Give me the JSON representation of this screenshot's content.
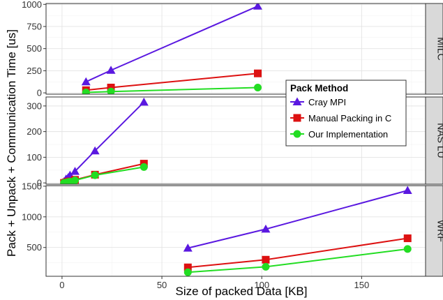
{
  "chart_data": {
    "type": "line",
    "xlabel": "Size of packed Data [KB]",
    "ylabel": "Pack + Unpack + Communication Time [us]",
    "xlim": [
      -8,
      182
    ],
    "x_ticks": [
      0,
      50,
      100,
      150
    ],
    "grid": true,
    "legend": {
      "title": "Pack Method",
      "placement": "top-right",
      "entries": [
        "Cray MPI",
        "Manual Packing in C",
        "Our Implementation"
      ]
    },
    "series_style": [
      {
        "name": "Cray MPI",
        "color": "#5a18e0",
        "marker": "triangle"
      },
      {
        "name": "Manual Packing in C",
        "color": "#dd1111",
        "marker": "square"
      },
      {
        "name": "Our Implementation",
        "color": "#22dd22",
        "marker": "circle"
      }
    ],
    "panels": [
      {
        "facet_label": "MILC",
        "ylim": [
          -15,
          1010
        ],
        "y_ticks": [
          0,
          250,
          500,
          750,
          1000
        ],
        "series": [
          {
            "name": "Cray MPI",
            "x": [
              12,
              24.5,
              98
            ],
            "y": [
              125,
              255,
              980
            ]
          },
          {
            "name": "Manual Packing in C",
            "x": [
              12,
              24.5,
              98
            ],
            "y": [
              30,
              60,
              220
            ]
          },
          {
            "name": "Our Implementation",
            "x": [
              12,
              24.5,
              98
            ],
            "y": [
              5,
              15,
              60
            ]
          }
        ]
      },
      {
        "facet_label": "NAS LU",
        "ylim": [
          -5,
          335
        ],
        "y_ticks": [
          0,
          100,
          200,
          300
        ],
        "series": [
          {
            "name": "Cray MPI",
            "x": [
              1,
              2,
              3,
              4,
              6.5,
              16.5,
              41
            ],
            "y": [
              5,
              15,
              20,
              30,
              45,
              125,
              315
            ]
          },
          {
            "name": "Manual Packing in C",
            "x": [
              1,
              2,
              3,
              4,
              6.5,
              16.5,
              41
            ],
            "y": [
              0,
              2,
              4,
              6,
              12,
              32,
              75
            ]
          },
          {
            "name": "Our Implementation",
            "x": [
              1,
              2,
              3,
              4,
              6.5,
              16.5,
              41
            ],
            "y": [
              0,
              1,
              3,
              5,
              10,
              30,
              62
            ]
          }
        ]
      },
      {
        "facet_label": "WRF",
        "ylim": [
          30,
          1510
        ],
        "y_ticks": [
          500,
          1000,
          1500
        ],
        "series": [
          {
            "name": "Cray MPI",
            "x": [
              63,
              102,
              173
            ],
            "y": [
              490,
              800,
              1430
            ]
          },
          {
            "name": "Manual Packing in C",
            "x": [
              63,
              102,
              173
            ],
            "y": [
              175,
              300,
              650
            ]
          },
          {
            "name": "Our Implementation",
            "x": [
              63,
              102,
              173
            ],
            "y": [
              95,
              185,
              475
            ]
          }
        ]
      }
    ]
  }
}
